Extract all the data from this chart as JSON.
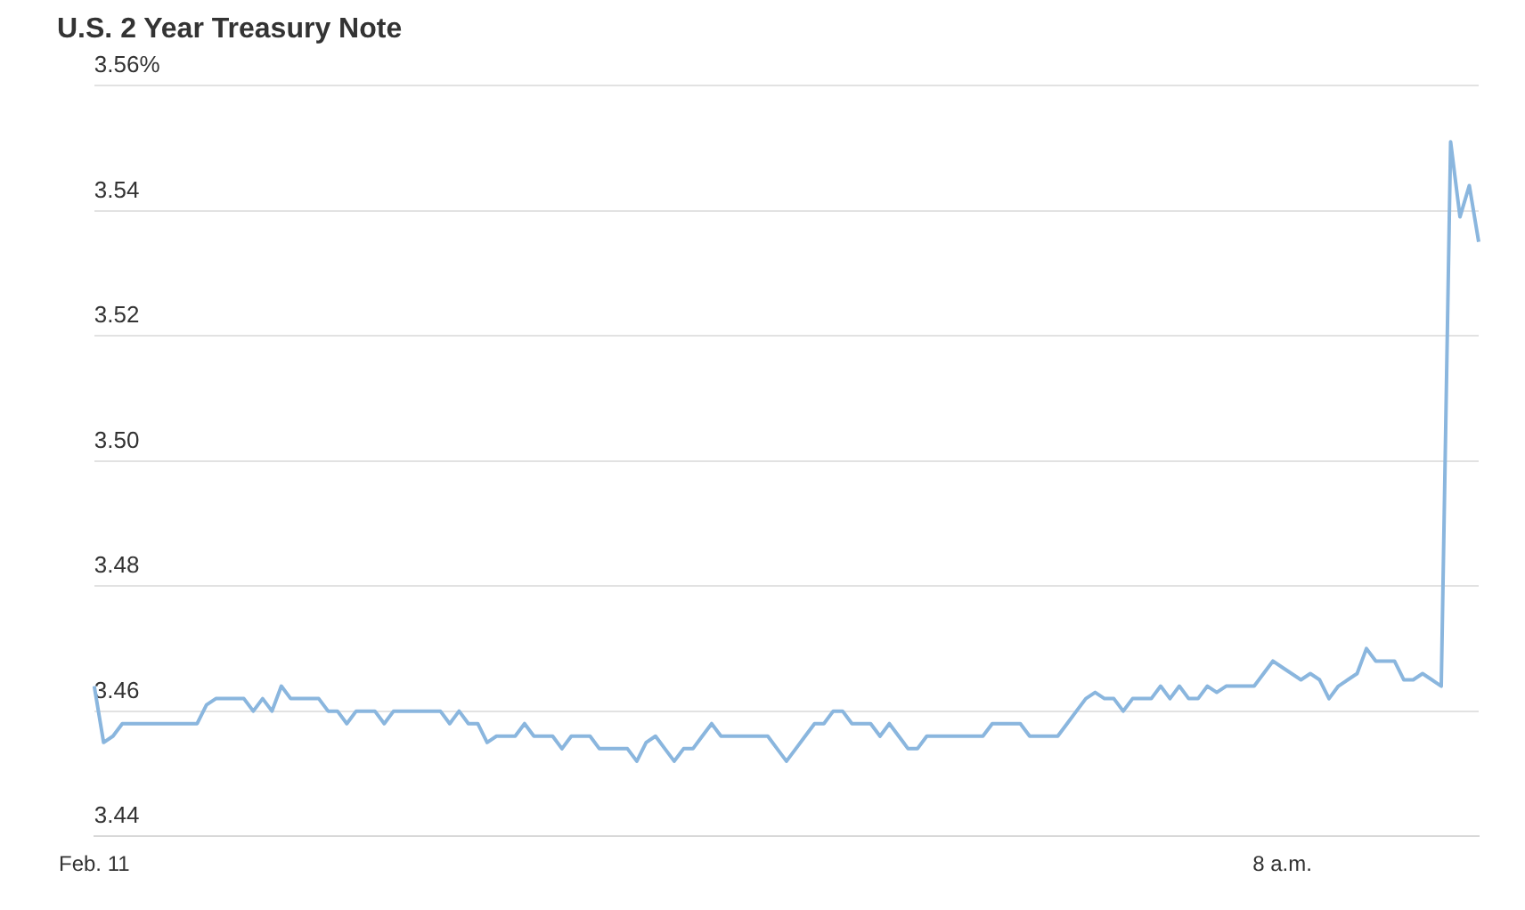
{
  "chart_data": {
    "type": "line",
    "title": "U.S. 2 Year Treasury Note",
    "categories": [
      "Feb. 11",
      null,
      null,
      null,
      null,
      null,
      null,
      null,
      null,
      null,
      null,
      null,
      null,
      null,
      null,
      null,
      null,
      null,
      null,
      null,
      null,
      null,
      null,
      null,
      null,
      null,
      null,
      null,
      null,
      null,
      null,
      null,
      null,
      null,
      null,
      null,
      null,
      null,
      null,
      null,
      null,
      null,
      null,
      null,
      null,
      null,
      null,
      null,
      null,
      null,
      null,
      null,
      null,
      null,
      null,
      null,
      null,
      null,
      null,
      null,
      null,
      null,
      null,
      null,
      null,
      null,
      null,
      null,
      null,
      null,
      null,
      null,
      null,
      null,
      null,
      null,
      null,
      null,
      null,
      null,
      null,
      null,
      null,
      null,
      null,
      null,
      null,
      null,
      null,
      null,
      null,
      null,
      null,
      null,
      null,
      null,
      null,
      null,
      null,
      null,
      null,
      null,
      null,
      null,
      null,
      null,
      null,
      null,
      null,
      null,
      null,
      null,
      null,
      null,
      null,
      null,
      null,
      null,
      null,
      null,
      null,
      null,
      null,
      null,
      null,
      null,
      null,
      "8 a.m.",
      null,
      null,
      null,
      null,
      null,
      null,
      null,
      null,
      null,
      null,
      null,
      null,
      null,
      null,
      null,
      null,
      null,
      null,
      null,
      null,
      null
    ],
    "series": [
      {
        "color": "#8ab6de",
        "values": [
          3.464,
          3.455,
          3.456,
          3.458,
          3.458,
          3.458,
          3.458,
          3.458,
          3.458,
          3.458,
          3.458,
          3.458,
          3.461,
          3.462,
          3.462,
          3.462,
          3.462,
          3.46,
          3.462,
          3.46,
          3.464,
          3.462,
          3.462,
          3.462,
          3.462,
          3.46,
          3.46,
          3.458,
          3.46,
          3.46,
          3.46,
          3.458,
          3.46,
          3.46,
          3.46,
          3.46,
          3.46,
          3.46,
          3.458,
          3.46,
          3.458,
          3.458,
          3.455,
          3.456,
          3.456,
          3.456,
          3.458,
          3.456,
          3.456,
          3.456,
          3.454,
          3.456,
          3.456,
          3.456,
          3.454,
          3.454,
          3.454,
          3.454,
          3.452,
          3.455,
          3.456,
          3.454,
          3.452,
          3.454,
          3.454,
          3.456,
          3.458,
          3.456,
          3.456,
          3.456,
          3.456,
          3.456,
          3.456,
          3.454,
          3.452,
          3.454,
          3.456,
          3.458,
          3.458,
          3.46,
          3.46,
          3.458,
          3.458,
          3.458,
          3.456,
          3.458,
          3.456,
          3.454,
          3.454,
          3.456,
          3.456,
          3.456,
          3.456,
          3.456,
          3.456,
          3.456,
          3.458,
          3.458,
          3.458,
          3.458,
          3.456,
          3.456,
          3.456,
          3.456,
          3.458,
          3.46,
          3.462,
          3.463,
          3.462,
          3.462,
          3.46,
          3.462,
          3.462,
          3.462,
          3.464,
          3.462,
          3.464,
          3.462,
          3.462,
          3.464,
          3.463,
          3.464,
          3.464,
          3.464,
          3.464,
          3.466,
          3.468,
          3.467,
          3.466,
          3.465,
          3.466,
          3.465,
          3.462,
          3.464,
          3.465,
          3.466,
          3.47,
          3.468,
          3.468,
          3.468,
          3.465,
          3.465,
          3.466,
          3.465,
          3.464,
          3.551,
          3.539,
          3.544,
          3.535
        ]
      }
    ],
    "ylim": [
      3.44,
      3.56
    ],
    "yticks": [
      3.44,
      3.46,
      3.48,
      {
        "value": 3.5,
        "label": "3.50"
      },
      3.52,
      3.54,
      {
        "value": 3.56,
        "label": "3.56%"
      }
    ],
    "grid": "y",
    "marker": "none",
    "line_style": "solid"
  }
}
